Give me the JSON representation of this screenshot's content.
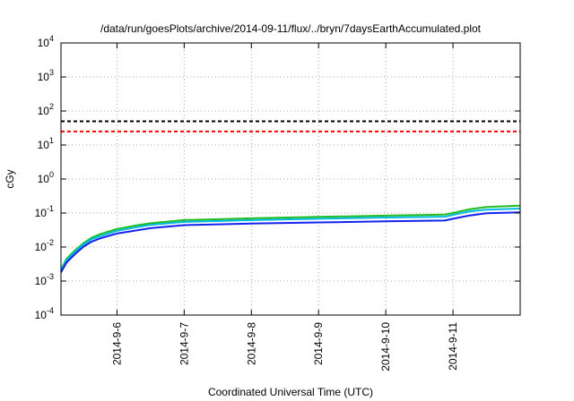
{
  "chart_data": {
    "type": "line",
    "title": "/data/run/goesPlots/archive/2014-09-11/flux/../bryn/7daysEarthAccumulated.plot",
    "xlabel": "Coordinated Universal Time (UTC)",
    "ylabel": "cGy",
    "y_scale": "log",
    "ylim": [
      0.0001,
      10000
    ],
    "y_tick_exponents": [
      -4,
      -3,
      -2,
      -1,
      0,
      1,
      2,
      3,
      4
    ],
    "y_tick_base": "10",
    "xlim": [
      "2014-09-05T04:00",
      "2014-09-12T00:00"
    ],
    "x_ticks": [
      {
        "value": "2014-09-06",
        "label": "2014-9-6"
      },
      {
        "value": "2014-09-07",
        "label": "2014-9-7"
      },
      {
        "value": "2014-09-08",
        "label": "2014-9-8"
      },
      {
        "value": "2014-09-09",
        "label": "2014-9-9"
      },
      {
        "value": "2014-09-10",
        "label": "2014-9-10"
      },
      {
        "value": "2014-09-11",
        "label": "2014-9-11"
      }
    ],
    "grid": true,
    "legend": "none",
    "thresholds": [
      {
        "value": 50,
        "color": "#000000",
        "style": "dashed"
      },
      {
        "value": 25,
        "color": "#ff0000",
        "style": "dashed"
      }
    ],
    "series": [
      {
        "color": "#22bb22",
        "x": [
          "2014-09-05T04:00",
          "2014-09-05T06:00",
          "2014-09-05T09:00",
          "2014-09-05T12:00",
          "2014-09-05T15:00",
          "2014-09-05T18:00",
          "2014-09-06T00:00",
          "2014-09-06T06:00",
          "2014-09-06T12:00",
          "2014-09-07T00:00",
          "2014-09-08T00:00",
          "2014-09-09T00:00",
          "2014-09-10T00:00",
          "2014-09-10T21:00",
          "2014-09-11T00:00",
          "2014-09-11T06:00",
          "2014-09-11T12:00",
          "2014-09-12T00:00"
        ],
        "y": [
          0.0022,
          0.0045,
          0.008,
          0.013,
          0.019,
          0.024,
          0.034,
          0.042,
          0.05,
          0.062,
          0.07,
          0.077,
          0.084,
          0.09,
          0.1,
          0.13,
          0.15,
          0.165
        ]
      },
      {
        "color": "#00bbdd",
        "x": [
          "2014-09-05T04:00",
          "2014-09-05T06:00",
          "2014-09-05T09:00",
          "2014-09-05T12:00",
          "2014-09-05T15:00",
          "2014-09-05T18:00",
          "2014-09-06T00:00",
          "2014-09-06T06:00",
          "2014-09-06T12:00",
          "2014-09-07T00:00",
          "2014-09-08T00:00",
          "2014-09-09T00:00",
          "2014-09-10T00:00",
          "2014-09-10T21:00",
          "2014-09-11T00:00",
          "2014-09-11T06:00",
          "2014-09-11T12:00",
          "2014-09-12T00:00"
        ],
        "y": [
          0.002,
          0.004,
          0.0072,
          0.0118,
          0.017,
          0.021,
          0.03,
          0.037,
          0.045,
          0.055,
          0.062,
          0.068,
          0.074,
          0.078,
          0.088,
          0.112,
          0.125,
          0.135
        ]
      },
      {
        "color": "#1122ee",
        "x": [
          "2014-09-05T04:00",
          "2014-09-05T06:00",
          "2014-09-05T09:00",
          "2014-09-05T12:00",
          "2014-09-05T15:00",
          "2014-09-05T18:00",
          "2014-09-06T00:00",
          "2014-09-06T06:00",
          "2014-09-06T12:00",
          "2014-09-07T00:00",
          "2014-09-08T00:00",
          "2014-09-09T00:00",
          "2014-09-10T00:00",
          "2014-09-10T21:00",
          "2014-09-11T00:00",
          "2014-09-11T06:00",
          "2014-09-11T12:00",
          "2014-09-12T00:00"
        ],
        "y": [
          0.0018,
          0.0035,
          0.0062,
          0.0102,
          0.0145,
          0.018,
          0.025,
          0.03,
          0.036,
          0.044,
          0.049,
          0.053,
          0.057,
          0.06,
          0.068,
          0.085,
          0.098,
          0.105
        ]
      }
    ]
  }
}
